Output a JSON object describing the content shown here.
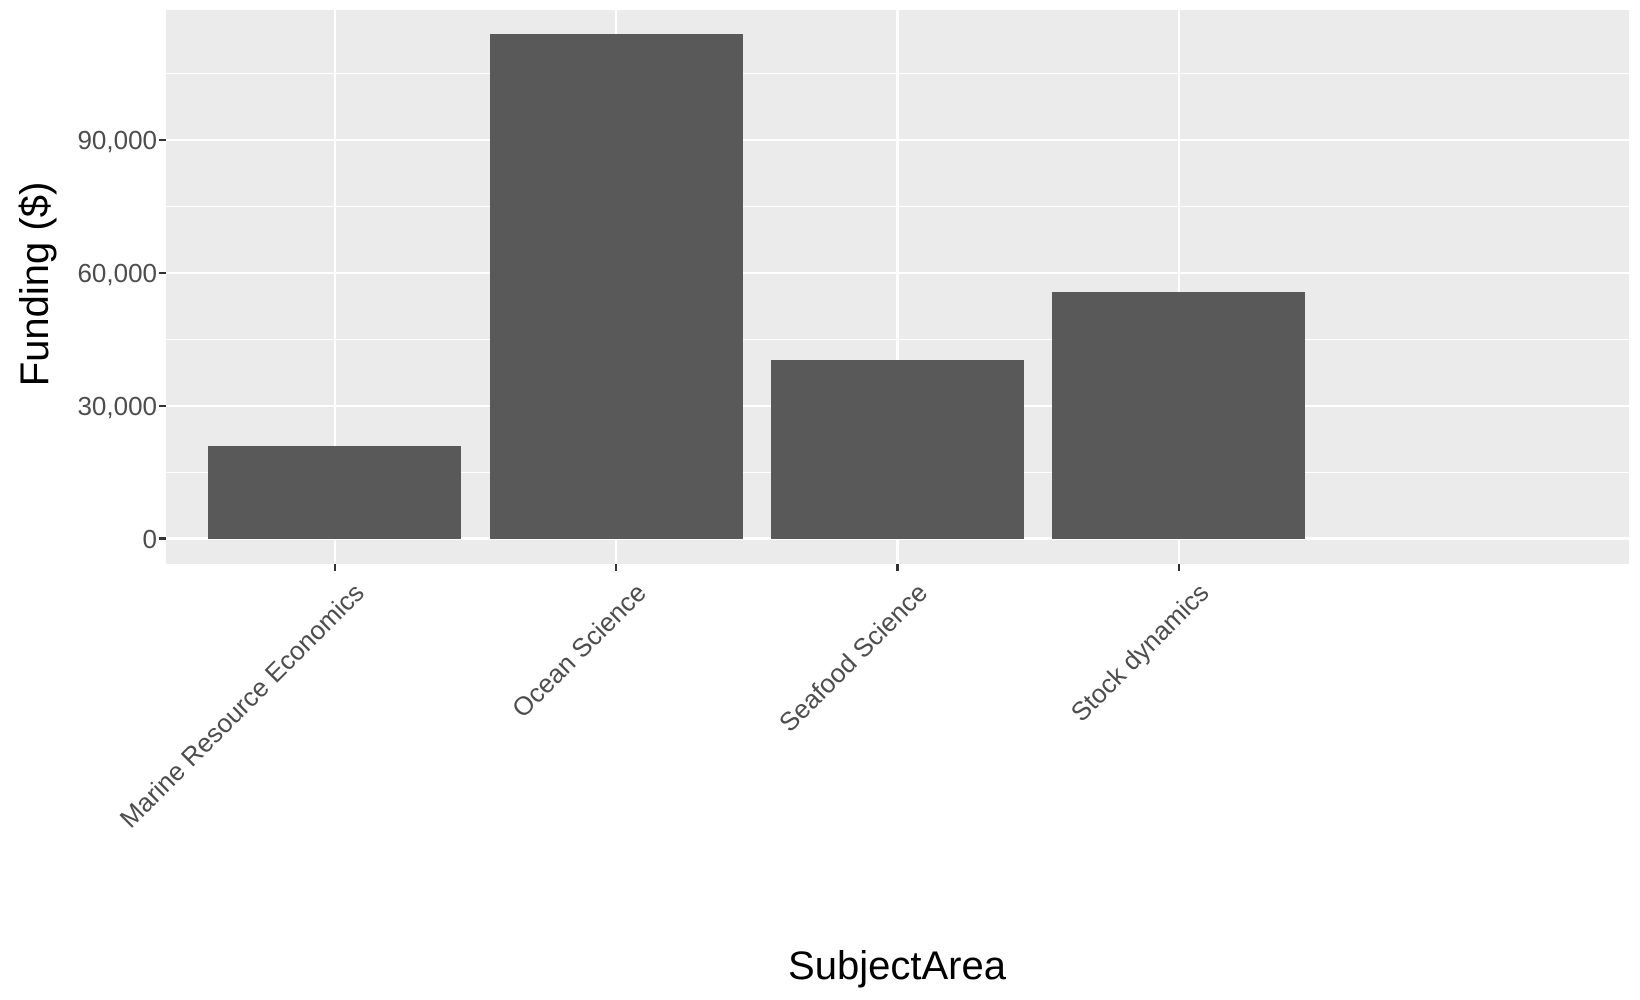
{
  "chart_data": {
    "type": "bar",
    "title": "",
    "xlabel": "SubjectArea",
    "ylabel": "Funding ($)",
    "categories": [
      "Marine Resource Economics",
      "Ocean Science",
      "Seafood Science",
      "Stock dynamics"
    ],
    "values": [
      20900,
      113900,
      40300,
      55600
    ],
    "y_ticks": {
      "values": [
        0,
        30000,
        60000,
        90000
      ],
      "labels": [
        "0",
        "30,000",
        "60,000",
        "90,000"
      ]
    },
    "y_minor_gridlines": [
      15000,
      45000,
      75000,
      105000
    ],
    "ylim": [
      -5700,
      119300
    ],
    "grid": "major and minor horizontal white lines, vertical white lines at category centers",
    "legend_position": "none",
    "colors": {
      "bar_fill": "#595959",
      "panel_background": "#EBEBEB",
      "gridline": "#FFFFFF",
      "tick_label": "#4D4D4D",
      "axis_title": "#000000",
      "tick_mark": "#333333",
      "figure_background": "#FFFFFF"
    }
  }
}
